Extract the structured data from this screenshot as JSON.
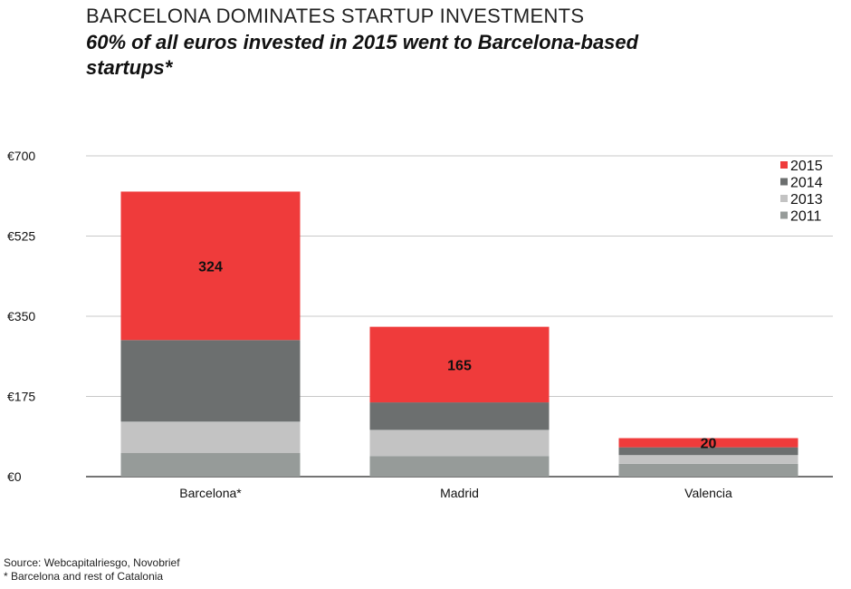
{
  "header": {
    "title": "BARCELONA DOMINATES STARTUP INVESTMENTS",
    "subtitle_line1": "60% of all euros invested in 2015 went to Barcelona-based",
    "subtitle_line2": "startups*"
  },
  "footer": {
    "source": "Source: Webcapitalriesgo, Novobrief",
    "note": "* Barcelona and rest of Catalonia"
  },
  "chart_data": {
    "type": "bar",
    "stacked": true,
    "categories": [
      "Barcelona*",
      "Madrid",
      "Valencia"
    ],
    "series": [
      {
        "name": "2011",
        "color": "#969b99",
        "values": [
          52,
          45,
          28
        ]
      },
      {
        "name": "2013",
        "color": "#c3c3c3",
        "values": [
          68,
          57,
          19
        ]
      },
      {
        "name": "2014",
        "color": "#6c6f6f",
        "values": [
          178,
          60,
          17
        ]
      },
      {
        "name": "2015",
        "color": "#ef3b3b",
        "values": [
          324,
          165,
          20
        ]
      }
    ],
    "data_labels": [
      {
        "category": "Barcelona*",
        "series": "2015",
        "text": "324"
      },
      {
        "category": "Madrid",
        "series": "2015",
        "text": "165"
      },
      {
        "category": "Valencia",
        "series": "2015",
        "text": "20"
      }
    ],
    "y_ticks": [
      0,
      175,
      350,
      525,
      700
    ],
    "y_tick_labels": [
      "€0",
      "€175",
      "€350",
      "€525",
      "€700"
    ],
    "ylim": [
      0,
      700
    ],
    "grid": true,
    "legend_position": "top-right",
    "legend_order": [
      "2015",
      "2014",
      "2013",
      "2011"
    ]
  }
}
